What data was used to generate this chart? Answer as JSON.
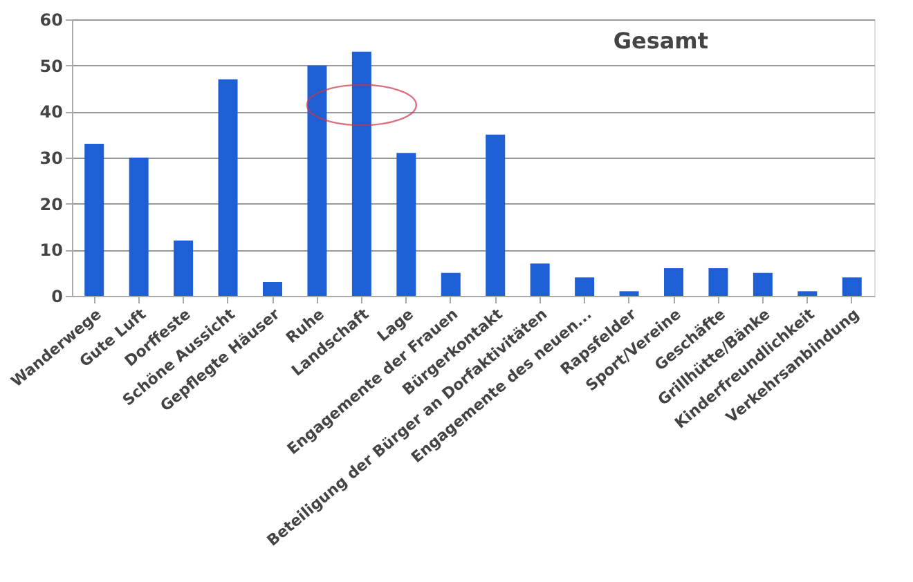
{
  "chart_data": {
    "type": "bar",
    "title": "Gesamt",
    "categories": [
      "Wanderwege",
      "Gute Luft",
      "Dorffeste",
      "Schöne Aussicht",
      "Gepflegte Häuser",
      "Ruhe",
      "Landschaft",
      "Lage",
      "Engagemente der Frauen",
      "Bürgerkontakt",
      "Beteiligung der Bürger an Dorfaktivitäten",
      "Engagemente des neuen...",
      "Rapsfelder",
      "Sport/Vereine",
      "Geschäfte",
      "Grillhütte/Bänke",
      "Kinderfreundlichkeit",
      "Verkehrsanbindung"
    ],
    "values": [
      33,
      30,
      12,
      47,
      3,
      50,
      53,
      31,
      5,
      35,
      7,
      4,
      1,
      6,
      6,
      5,
      1,
      4
    ],
    "color": "#1f5fd6",
    "ylim": [
      0,
      60
    ],
    "yticks": [
      0,
      10,
      20,
      30,
      40,
      50,
      60
    ],
    "grid": "y"
  }
}
